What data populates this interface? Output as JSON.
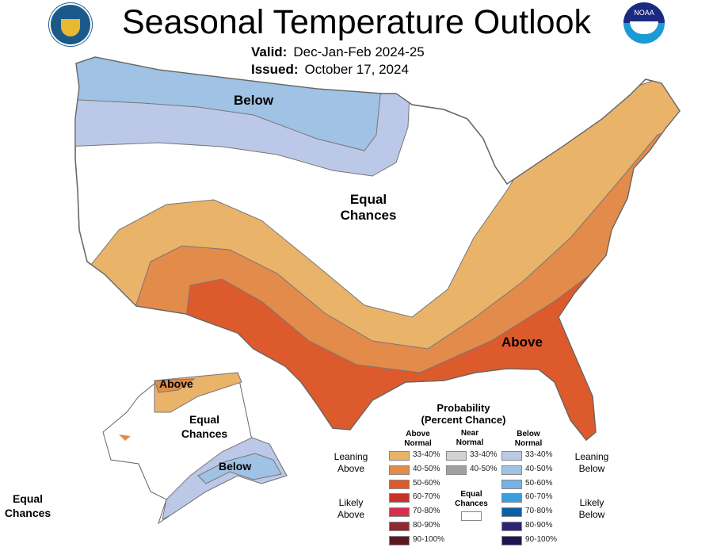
{
  "title": "Seasonal Temperature Outlook",
  "valid_label": "Valid:",
  "valid_value": "Dec-Jan-Feb 2024-25",
  "issued_label": "Issued:",
  "issued_value": "October 17, 2024",
  "logos": {
    "left": "department-of-commerce-seal",
    "right": "NOAA",
    "right_text": "NOAA"
  },
  "map_labels": {
    "conus_below": "Below",
    "conus_equal": "Equal Chances",
    "conus_above": "Above",
    "ak_above": "Above",
    "ak_equal": "Equal Chances",
    "ak_below": "Below",
    "hi_equal": "Equal Chances"
  },
  "legend": {
    "title": "Probability",
    "subtitle": "(Percent Chance)",
    "col_above": "Above Normal",
    "col_near": "Near Normal",
    "col_below": "Below Normal",
    "leaning_above": "Leaning Above",
    "likely_above": "Likely Above",
    "leaning_below": "Leaning Below",
    "likely_below": "Likely Below",
    "equal_chances": "Equal Chances",
    "above": [
      {
        "range": "33-40%",
        "color": "#e9b36a"
      },
      {
        "range": "40-50%",
        "color": "#e38b4a"
      },
      {
        "range": "50-60%",
        "color": "#dd5a2c"
      },
      {
        "range": "60-70%",
        "color": "#c8302a"
      },
      {
        "range": "70-80%",
        "color": "#d4324a"
      },
      {
        "range": "80-90%",
        "color": "#8d2a32"
      },
      {
        "range": "90-100%",
        "color": "#5c1a1e"
      }
    ],
    "near": [
      {
        "range": "33-40%",
        "color": "#d2d2d2"
      },
      {
        "range": "40-50%",
        "color": "#a0a0a0"
      }
    ],
    "below": [
      {
        "range": "33-40%",
        "color": "#bcc8e8"
      },
      {
        "range": "40-50%",
        "color": "#a0c2e4"
      },
      {
        "range": "50-60%",
        "color": "#78b2e2"
      },
      {
        "range": "60-70%",
        "color": "#3a9ee0"
      },
      {
        "range": "70-80%",
        "color": "#0b5fa8"
      },
      {
        "range": "80-90%",
        "color": "#2c2474"
      },
      {
        "range": "90-100%",
        "color": "#1c1650"
      }
    ]
  }
}
